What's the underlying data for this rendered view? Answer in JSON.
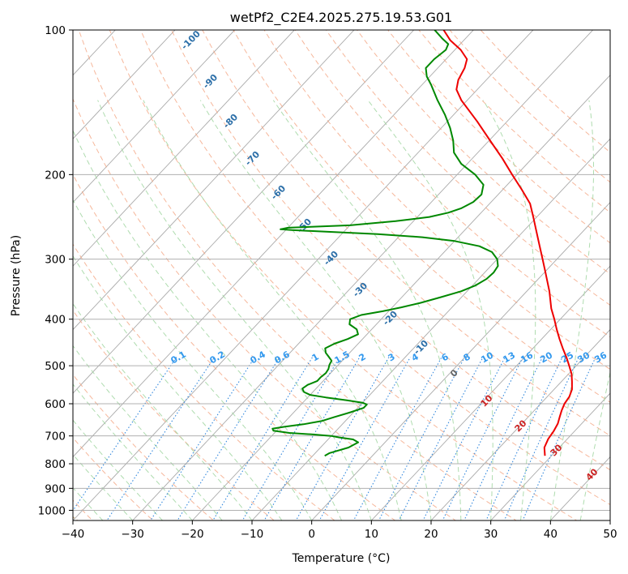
{
  "chart_data": {
    "type": "line",
    "title": "wetPf2_C2E4.2025.275.19.53.G01",
    "xlabel": "Temperature (°C)",
    "ylabel": "Pressure (hPa)",
    "xlim": [
      -40,
      50
    ],
    "ylim": [
      1050,
      100
    ],
    "y_scale": "log",
    "grid": true,
    "x_ticks": [
      -40,
      -30,
      -20,
      -10,
      0,
      10,
      20,
      30,
      40,
      50
    ],
    "y_ticks": [
      100,
      200,
      300,
      400,
      500,
      600,
      700,
      800,
      900,
      1000
    ],
    "skew_deg_per_decade": 75.5,
    "background_lines": {
      "isotherm_color": "#aaaaaa",
      "dry_adiabat_color": "#f4a582",
      "moist_adiabat_color": "#a6d8a6",
      "mixing_ratio_color": "#3388dd",
      "lcl_curve_color": "#d2b48c"
    },
    "dry_adiabat_labels": [
      "-100",
      "-90",
      "-80",
      "-70",
      "-60",
      "-50",
      "-40",
      "-30",
      "-20",
      "-10",
      "0",
      "10",
      "20",
      "30",
      "40"
    ],
    "mixing_ratio_labels": [
      "0.1",
      "0.2",
      "0.4",
      "0.6",
      "1",
      "1.5",
      "2",
      "3",
      "4",
      "6",
      "8",
      "10",
      "13",
      "16",
      "20",
      "25",
      "30",
      "36"
    ],
    "series": [
      {
        "color": "#ee0000",
        "points": [
          [
            770,
            28.9
          ],
          [
            740,
            27.5
          ],
          [
            710,
            26.8
          ],
          [
            685,
            26.5
          ],
          [
            660,
            26.0
          ],
          [
            640,
            25.3
          ],
          [
            620,
            24.6
          ],
          [
            600,
            24.0
          ],
          [
            580,
            23.7
          ],
          [
            560,
            23.0
          ],
          [
            540,
            21.8
          ],
          [
            520,
            20.5
          ],
          [
            500,
            18.8
          ],
          [
            480,
            17.0
          ],
          [
            460,
            15.0
          ],
          [
            440,
            13.0
          ],
          [
            420,
            11.0
          ],
          [
            400,
            9.0
          ],
          [
            380,
            6.8
          ],
          [
            350,
            3.8
          ],
          [
            320,
            0.2
          ],
          [
            300,
            -2.4
          ],
          [
            280,
            -5.2
          ],
          [
            260,
            -8.2
          ],
          [
            245,
            -10.6
          ],
          [
            230,
            -13.2
          ],
          [
            215,
            -16.8
          ],
          [
            200,
            -20.8
          ],
          [
            185,
            -25.0
          ],
          [
            170,
            -29.8
          ],
          [
            155,
            -35.0
          ],
          [
            140,
            -41.0
          ],
          [
            133,
            -43.5
          ],
          [
            127,
            -44.7
          ],
          [
            120,
            -45.5
          ],
          [
            115,
            -46.5
          ],
          [
            110,
            -49.0
          ],
          [
            105,
            -52.3
          ],
          [
            100,
            -55.0
          ]
        ]
      },
      {
        "color": "#008800",
        "points": [
          [
            770,
            -8.0
          ],
          [
            760,
            -7.6
          ],
          [
            740,
            -5.3
          ],
          [
            722,
            -4.5
          ],
          [
            712,
            -5.8
          ],
          [
            705,
            -8.5
          ],
          [
            700,
            -10.0
          ],
          [
            695,
            -13.5
          ],
          [
            690,
            -17.5
          ],
          [
            683,
            -20.5
          ],
          [
            676,
            -21.0
          ],
          [
            670,
            -19.3
          ],
          [
            662,
            -16.5
          ],
          [
            652,
            -14.0
          ],
          [
            640,
            -12.5
          ],
          [
            625,
            -10.5
          ],
          [
            612,
            -9.0
          ],
          [
            602,
            -9.0
          ],
          [
            597,
            -10.0
          ],
          [
            590,
            -13.0
          ],
          [
            582,
            -17.0
          ],
          [
            575,
            -20.0
          ],
          [
            567,
            -21.5
          ],
          [
            558,
            -22.3
          ],
          [
            548,
            -22.0
          ],
          [
            538,
            -21.0
          ],
          [
            528,
            -21.0
          ],
          [
            518,
            -20.8
          ],
          [
            508,
            -21.0
          ],
          [
            498,
            -21.5
          ],
          [
            488,
            -21.8
          ],
          [
            478,
            -23.0
          ],
          [
            470,
            -24.0
          ],
          [
            460,
            -24.8
          ],
          [
            450,
            -24.0
          ],
          [
            440,
            -22.5
          ],
          [
            430,
            -21.5
          ],
          [
            420,
            -22.5
          ],
          [
            410,
            -24.5
          ],
          [
            400,
            -25.2
          ],
          [
            392,
            -24.0
          ],
          [
            385,
            -21.0
          ],
          [
            378,
            -18.5
          ],
          [
            370,
            -16.0
          ],
          [
            360,
            -13.5
          ],
          [
            350,
            -11.0
          ],
          [
            340,
            -9.5
          ],
          [
            330,
            -8.7
          ],
          [
            320,
            -8.5
          ],
          [
            310,
            -8.8
          ],
          [
            300,
            -10.0
          ],
          [
            290,
            -12.0
          ],
          [
            282,
            -15.0
          ],
          [
            275,
            -20.0
          ],
          [
            270,
            -26.0
          ],
          [
            266,
            -34.0
          ],
          [
            263,
            -43.0
          ],
          [
            261,
            -49.0
          ],
          [
            260,
            -51.0
          ],
          [
            258,
            -50.0
          ],
          [
            255,
            -40.0
          ],
          [
            250,
            -33.0
          ],
          [
            245,
            -28.0
          ],
          [
            240,
            -25.5
          ],
          [
            235,
            -24.0
          ],
          [
            228,
            -23.0
          ],
          [
            220,
            -22.8
          ],
          [
            210,
            -24.0
          ],
          [
            200,
            -27.0
          ],
          [
            190,
            -31.0
          ],
          [
            180,
            -34.0
          ],
          [
            170,
            -36.0
          ],
          [
            160,
            -38.5
          ],
          [
            150,
            -41.5
          ],
          [
            140,
            -45.0
          ],
          [
            130,
            -48.5
          ],
          [
            125,
            -50.5
          ],
          [
            120,
            -52.0
          ],
          [
            115,
            -52.0
          ],
          [
            110,
            -51.5
          ],
          [
            107,
            -52.0
          ],
          [
            104,
            -54.0
          ],
          [
            100,
            -56.5
          ]
        ]
      }
    ]
  }
}
